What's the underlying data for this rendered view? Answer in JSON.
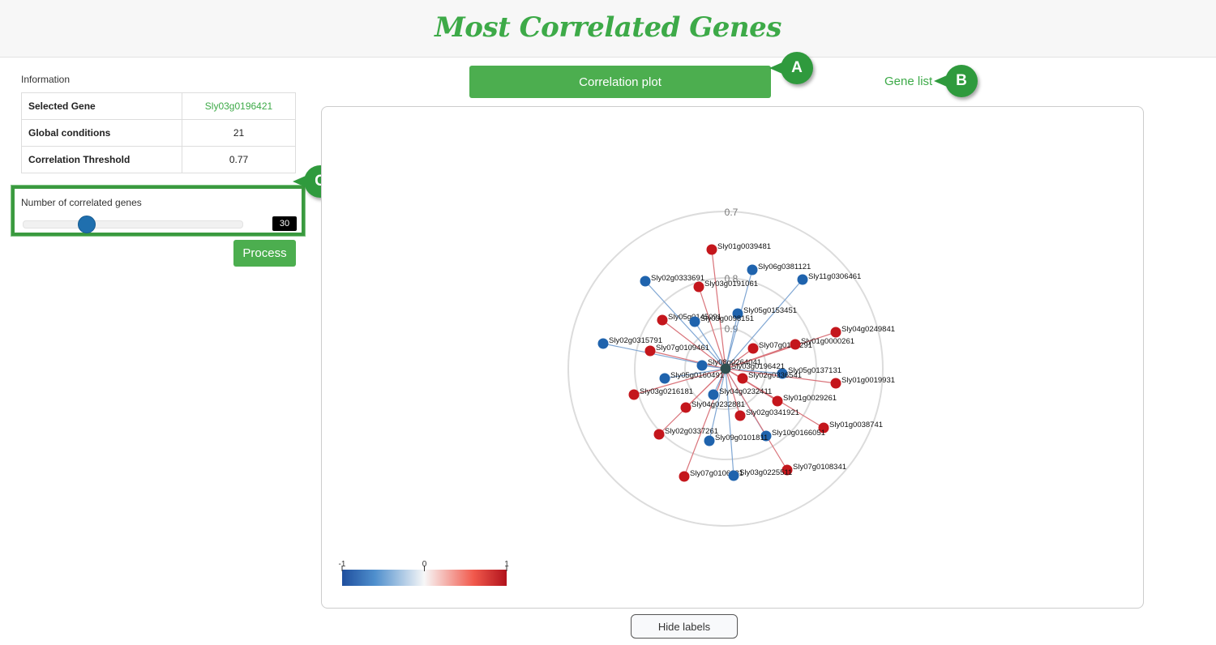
{
  "header": {
    "title": "Most Correlated Genes"
  },
  "info": {
    "label": "Information",
    "rows": [
      {
        "key": "Selected Gene",
        "value": "Sly03g0196421"
      },
      {
        "key": "Global conditions",
        "value": "21"
      },
      {
        "key": "Correlation Threshold",
        "value": "0.77"
      }
    ]
  },
  "slider": {
    "label": "Number of correlated genes",
    "value": "30",
    "level_fraction": 0.3
  },
  "process_label": "Process",
  "tabs": {
    "correlation_plot": "Correlation plot",
    "gene_list": "Gene list"
  },
  "callouts": [
    "A",
    "B",
    "C"
  ],
  "hide_labels_label": "Hide labels",
  "colors": {
    "accent": "#4cae4f",
    "negative": "#1f63ad",
    "positive": "#c4161c",
    "center": "#2f4f4f"
  },
  "chart_data": {
    "type": "scatter",
    "description_kind": "radial correlation network",
    "radial_labels": [
      "0.7",
      "0.8",
      "0.9"
    ],
    "color_scale": {
      "min": "-1",
      "mid": "0",
      "max": "1"
    },
    "center_gene": "Sly03g0196421",
    "genes": [
      {
        "label": "Sly01g0039481",
        "sign": "+"
      },
      {
        "label": "Sly06g0381121",
        "sign": "-"
      },
      {
        "label": "Sly02g0333691",
        "sign": "-"
      },
      {
        "label": "Sly03g0191061",
        "sign": "+"
      },
      {
        "label": "Sly11g0306461",
        "sign": "-"
      },
      {
        "label": "Sly05g0153451",
        "sign": "-"
      },
      {
        "label": "Sly05g0145091",
        "sign": "+"
      },
      {
        "label": "Sly03g0098151",
        "sign": "-"
      },
      {
        "label": "Sly04g0249841",
        "sign": "+"
      },
      {
        "label": "Sly02g0315791",
        "sign": "-"
      },
      {
        "label": "Sly07g0109461",
        "sign": "+"
      },
      {
        "label": "Sly07g0106291",
        "sign": "+"
      },
      {
        "label": "Sly01g0000261",
        "sign": "+"
      },
      {
        "label": "Sly08g0264041",
        "sign": "-"
      },
      {
        "label": "Sly05g0137131",
        "sign": "-"
      },
      {
        "label": "Sly01g0019931",
        "sign": "+"
      },
      {
        "label": "Sly05g0160491",
        "sign": "-"
      },
      {
        "label": "Sly02g0336541",
        "sign": "+"
      },
      {
        "label": "Sly03g0216181",
        "sign": "+"
      },
      {
        "label": "Sly04g0232411",
        "sign": "-"
      },
      {
        "label": "Sly01g0029261",
        "sign": "+"
      },
      {
        "label": "Sly04g0232881",
        "sign": "+"
      },
      {
        "label": "Sly02g0341921",
        "sign": "+"
      },
      {
        "label": "Sly01g0038741",
        "sign": "+"
      },
      {
        "label": "Sly10g0166051",
        "sign": "-"
      },
      {
        "label": "Sly02g0337261",
        "sign": "+"
      },
      {
        "label": "Sly09g0101811",
        "sign": "-"
      },
      {
        "label": "Sly07g0108341",
        "sign": "+"
      },
      {
        "label": "Sly07g0106281",
        "sign": "+"
      },
      {
        "label": "Sly03g0225511",
        "sign": "-"
      }
    ]
  }
}
